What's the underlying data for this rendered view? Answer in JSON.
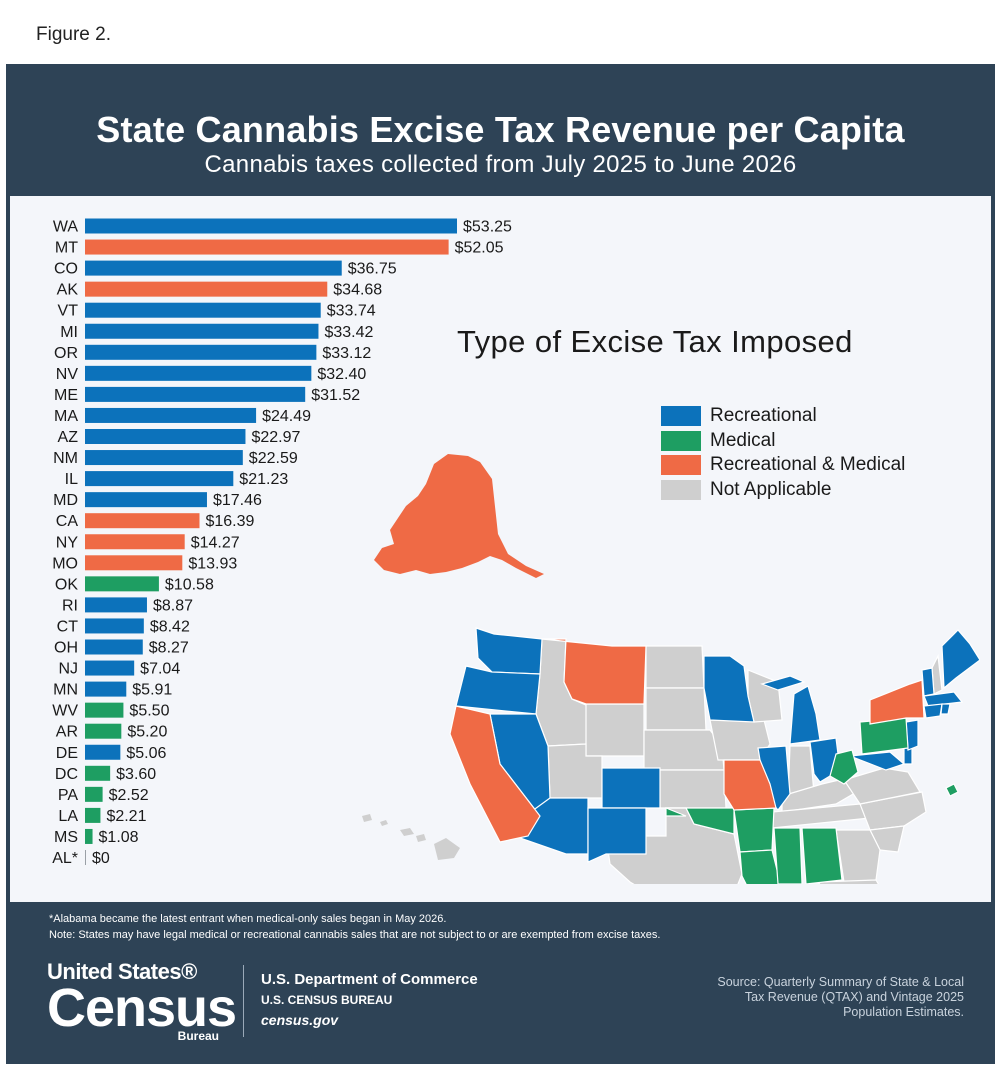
{
  "figure_label": "Figure 2.",
  "chart_data": {
    "type": "bar",
    "orientation": "horizontal",
    "title": "State Cannabis Excise Tax Revenue per Capita",
    "subtitle": "Cannabis taxes collected from July 2025 to June 2026",
    "categories": [
      "WA",
      "MT",
      "CO",
      "AK",
      "VT",
      "MI",
      "OR",
      "NV",
      "ME",
      "MA",
      "AZ",
      "NM",
      "IL",
      "MD",
      "CA",
      "NY",
      "MO",
      "OK",
      "RI",
      "CT",
      "OH",
      "NJ",
      "MN",
      "WV",
      "AR",
      "DE",
      "DC",
      "PA",
      "LA",
      "MS",
      "AL*"
    ],
    "values": [
      53.25,
      52.05,
      36.75,
      34.68,
      33.74,
      33.42,
      33.12,
      32.4,
      31.52,
      24.49,
      22.97,
      22.59,
      21.23,
      17.46,
      16.39,
      14.27,
      13.93,
      10.58,
      8.87,
      8.42,
      8.27,
      7.04,
      5.91,
      5.5,
      5.2,
      5.06,
      3.6,
      2.52,
      2.21,
      1.08,
      0
    ],
    "value_labels": [
      "$53.25",
      "$52.05",
      "$36.75",
      "$34.68",
      "$33.74",
      "$33.42",
      "$33.12",
      "$32.40",
      "$31.52",
      "$24.49",
      "$22.97",
      "$22.59",
      "$21.23",
      "$17.46",
      "$16.39",
      "$14.27",
      "$13.93",
      "$10.58",
      "$8.87",
      "$8.42",
      "$8.27",
      "$7.04",
      "$5.91",
      "$5.50",
      "$5.20",
      "$5.06",
      "$3.60",
      "$2.52",
      "$2.21",
      "$1.08",
      "$0"
    ],
    "tax_type": [
      "Recreational",
      "Recreational & Medical",
      "Recreational",
      "Recreational & Medical",
      "Recreational",
      "Recreational",
      "Recreational",
      "Recreational",
      "Recreational",
      "Recreational",
      "Recreational",
      "Recreational",
      "Recreational",
      "Recreational",
      "Recreational & Medical",
      "Recreational & Medical",
      "Recreational & Medical",
      "Medical",
      "Recreational",
      "Recreational",
      "Recreational",
      "Recreational",
      "Recreational",
      "Medical",
      "Medical",
      "Recreational",
      "Medical",
      "Medical",
      "Medical",
      "Medical",
      "Medical"
    ],
    "xlim": [
      0,
      53.25
    ],
    "grid": false
  },
  "map": {
    "title": "Type of Excise Tax Imposed",
    "legend": [
      {
        "label": "Recreational",
        "color": "#0c72bb"
      },
      {
        "label": "Medical",
        "color": "#1e9e62"
      },
      {
        "label": "Recreational & Medical",
        "color": "#ef6a45"
      },
      {
        "label": "Not Applicable",
        "color": "#cfcfcf"
      }
    ]
  },
  "colors": {
    "Recreational": "#0c72bb",
    "Medical": "#1e9e62",
    "Recreational & Medical": "#ef6a45",
    "Not Applicable": "#cfcfcf",
    "frame": "#2e4356",
    "panel": "#f4f6fa"
  },
  "footer": {
    "note1": "*Alabama became the latest entrant when medical-only sales began in May 2026.",
    "note2": "Note: States may have legal medical or recreational cannabis sales that are not subject to or are exempted from excise taxes.",
    "logo_line1": "United States®",
    "logo_line2": "Census",
    "logo_line3": "Bureau",
    "dept": "U.S. Department of Commerce",
    "bureau": "U.S. CENSUS BUREAU",
    "url": "census.gov",
    "source": "Source: Quarterly Summary of State & Local Tax Revenue (QTAX) and Vintage 2025 Population Estimates."
  }
}
